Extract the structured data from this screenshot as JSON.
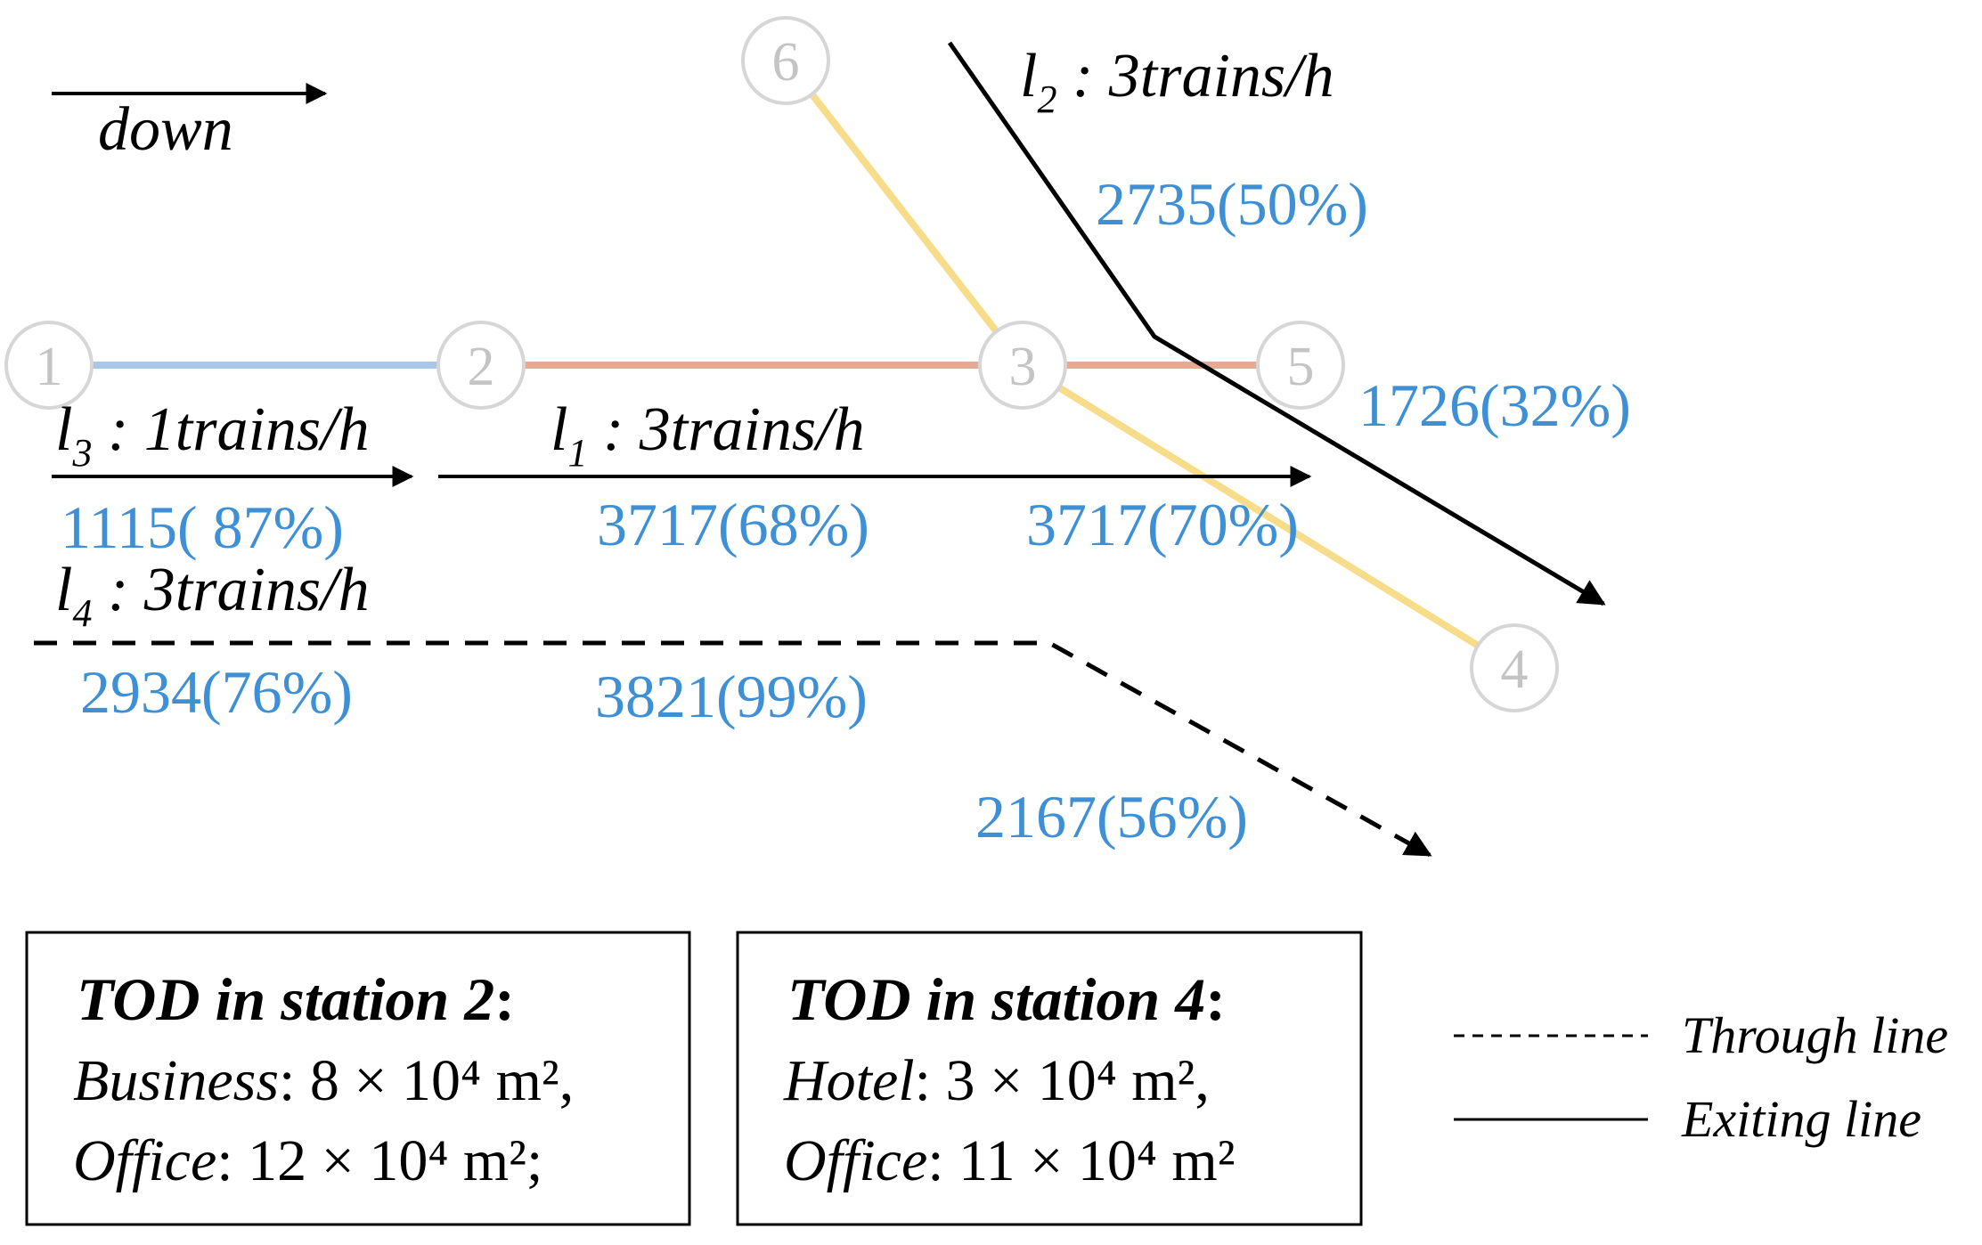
{
  "direction": {
    "label": "down"
  },
  "stations": [
    "1",
    "2",
    "3",
    "4",
    "5",
    "6"
  ],
  "lines": {
    "l1": {
      "name": "l",
      "sub": "1",
      "freq": " : 3trains/h"
    },
    "l2": {
      "name": "l",
      "sub": "2",
      "freq": " : 3trains/h"
    },
    "l3": {
      "name": "l",
      "sub": "3",
      "freq": " : 1trains/h"
    },
    "l4": {
      "name": "l",
      "sub": "4",
      "freq": " : 3trains/h"
    }
  },
  "flows": {
    "l2_upper": "2735(50%)",
    "l2_lower": "1726(32%)",
    "l3_seg": "1115( 87%)",
    "l1_seg1": "3717(68%)",
    "l1_seg2": "3717(70%)",
    "l4_seg1": "2934(76%)",
    "l4_seg2": "3821(99%)",
    "l4_seg3": "2167(56%)"
  },
  "tod_boxes": [
    {
      "title": "TOD in station 2",
      "title_colon": ":",
      "line1_name": "Business",
      "line1_value": ": 8 × 10⁴ m²,",
      "line2_name": "Office",
      "line2_value": ": 12 × 10⁴ m²;"
    },
    {
      "title": "TOD in station 4",
      "title_colon": ":",
      "line1_name": "Hotel",
      "line1_value": ": 3 × 10⁴ m²,",
      "line2_name": "Office",
      "line2_value": ": 11 × 10⁴ m²"
    }
  ],
  "legend": {
    "through": "Through line",
    "exiting": "Exiting line"
  },
  "colors": {
    "flow_text": "#3d8fd6",
    "track_1_2": "#a9c8e8",
    "track_2_5": "#e2ab94",
    "track_6_4": "#f7dc8a",
    "station_stroke": "#d6d6d6"
  }
}
